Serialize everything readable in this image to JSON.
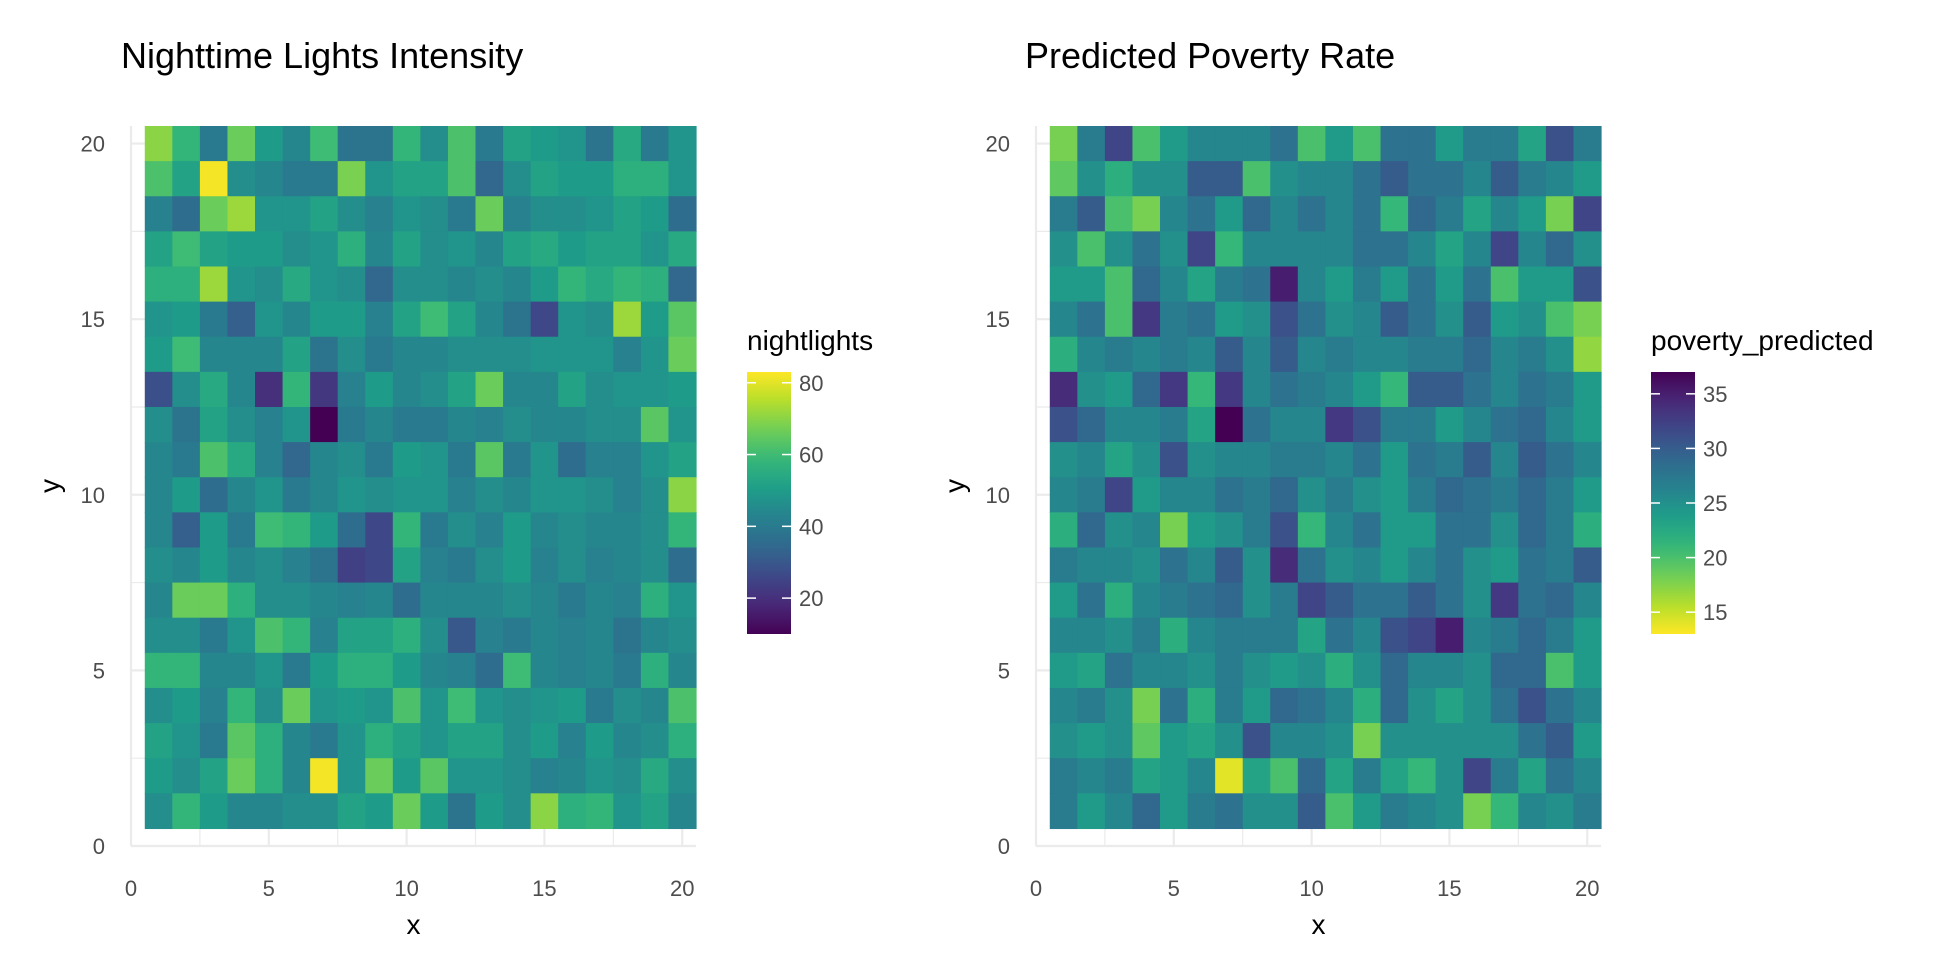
{
  "chart_data": [
    {
      "type": "heatmap",
      "title": "Nighttime Lights Intensity",
      "xlabel": "x",
      "ylabel": "y",
      "xlim": [
        0,
        20.5
      ],
      "ylim": [
        0,
        20.5
      ],
      "x_ticks": [
        0,
        5,
        10,
        15,
        20
      ],
      "y_ticks": [
        0,
        5,
        10,
        15,
        20
      ],
      "grid": true,
      "legend": {
        "title": "nightlights",
        "position": "right",
        "range": [
          10,
          83
        ],
        "ticks": [
          20,
          40,
          60,
          80
        ],
        "reverse": false,
        "scale": "viridis"
      },
      "rows_top_to_bottom": [
        [
          70,
          58,
          40,
          66,
          50,
          44,
          60,
          38,
          38,
          58,
          46,
          62,
          40,
          52,
          50,
          48,
          38,
          54,
          40,
          48
        ],
        [
          62,
          52,
          82,
          46,
          44,
          40,
          40,
          68,
          48,
          52,
          52,
          62,
          34,
          46,
          52,
          50,
          50,
          56,
          56,
          48
        ],
        [
          42,
          36,
          66,
          72,
          48,
          48,
          52,
          46,
          42,
          48,
          46,
          40,
          66,
          42,
          46,
          46,
          48,
          52,
          50,
          36
        ],
        [
          52,
          60,
          52,
          50,
          50,
          46,
          48,
          56,
          44,
          52,
          46,
          48,
          44,
          52,
          54,
          50,
          52,
          52,
          48,
          54
        ],
        [
          56,
          56,
          72,
          48,
          46,
          54,
          48,
          46,
          34,
          46,
          46,
          44,
          46,
          44,
          50,
          58,
          54,
          58,
          56,
          34
        ],
        [
          48,
          50,
          40,
          32,
          48,
          44,
          50,
          50,
          42,
          52,
          60,
          52,
          44,
          38,
          26,
          48,
          46,
          72,
          50,
          64
        ],
        [
          50,
          60,
          44,
          44,
          44,
          52,
          38,
          46,
          40,
          44,
          44,
          46,
          46,
          46,
          48,
          48,
          48,
          42,
          48,
          66
        ],
        [
          28,
          46,
          54,
          44,
          20,
          58,
          22,
          42,
          50,
          44,
          46,
          52,
          66,
          44,
          44,
          52,
          46,
          48,
          48,
          50
        ],
        [
          46,
          38,
          52,
          46,
          42,
          48,
          10,
          40,
          44,
          40,
          40,
          44,
          42,
          46,
          44,
          44,
          46,
          46,
          64,
          48
        ],
        [
          44,
          40,
          62,
          54,
          42,
          34,
          44,
          46,
          40,
          50,
          48,
          40,
          64,
          40,
          48,
          36,
          42,
          42,
          48,
          52
        ],
        [
          44,
          50,
          36,
          44,
          48,
          40,
          44,
          48,
          46,
          48,
          48,
          42,
          46,
          44,
          48,
          48,
          46,
          42,
          46,
          70
        ],
        [
          44,
          32,
          50,
          40,
          60,
          58,
          50,
          36,
          26,
          58,
          40,
          46,
          42,
          50,
          44,
          46,
          44,
          44,
          46,
          58
        ],
        [
          46,
          44,
          50,
          44,
          46,
          42,
          38,
          24,
          26,
          52,
          42,
          40,
          46,
          50,
          42,
          46,
          42,
          44,
          46,
          36
        ],
        [
          44,
          66,
          66,
          56,
          46,
          46,
          44,
          42,
          44,
          36,
          44,
          44,
          44,
          46,
          44,
          40,
          44,
          42,
          56,
          48
        ],
        [
          46,
          46,
          40,
          48,
          62,
          58,
          42,
          52,
          52,
          56,
          46,
          30,
          42,
          40,
          44,
          42,
          44,
          38,
          44,
          46
        ],
        [
          58,
          58,
          44,
          44,
          48,
          40,
          50,
          56,
          56,
          50,
          44,
          42,
          36,
          60,
          44,
          42,
          44,
          40,
          56,
          44
        ],
        [
          46,
          50,
          42,
          58,
          46,
          66,
          48,
          50,
          48,
          62,
          48,
          60,
          48,
          46,
          48,
          50,
          40,
          46,
          44,
          62
        ],
        [
          52,
          48,
          40,
          64,
          56,
          44,
          40,
          48,
          56,
          52,
          48,
          52,
          52,
          46,
          50,
          42,
          50,
          44,
          46,
          56
        ],
        [
          50,
          46,
          52,
          66,
          56,
          44,
          82,
          48,
          66,
          50,
          64,
          48,
          48,
          46,
          42,
          44,
          48,
          46,
          54,
          46
        ],
        [
          46,
          58,
          50,
          44,
          44,
          46,
          46,
          52,
          50,
          66,
          50,
          38,
          50,
          46,
          70,
          56,
          58,
          48,
          52,
          44
        ]
      ]
    },
    {
      "type": "heatmap",
      "title": "Predicted Poverty Rate",
      "xlabel": "x",
      "ylabel": "y",
      "xlim": [
        0,
        20.5
      ],
      "ylim": [
        0,
        20.5
      ],
      "x_ticks": [
        0,
        5,
        10,
        15,
        20
      ],
      "y_ticks": [
        0,
        5,
        10,
        15,
        20
      ],
      "grid": true,
      "legend": {
        "title": "poverty_predicted",
        "position": "right",
        "range": [
          13,
          37
        ],
        "ticks": [
          15,
          20,
          25,
          30,
          35
        ],
        "reverse": true,
        "scale": "viridis"
      },
      "rows_top_to_bottom": [
        [
          18,
          27,
          32,
          20,
          24,
          26,
          26,
          26,
          28,
          20,
          24,
          20,
          28,
          28,
          24,
          27,
          27,
          23,
          31,
          27
        ],
        [
          19,
          25,
          22,
          25,
          25,
          30,
          30,
          20,
          25,
          26,
          26,
          28,
          30,
          28,
          28,
          26,
          30,
          27,
          26,
          24
        ],
        [
          27,
          30,
          20,
          18,
          26,
          28,
          24,
          29,
          26,
          28,
          26,
          28,
          21,
          29,
          27,
          23,
          26,
          24,
          18,
          32
        ],
        [
          25,
          20,
          25,
          28,
          25,
          32,
          21,
          26,
          26,
          26,
          26,
          28,
          28,
          26,
          23,
          26,
          32,
          26,
          29,
          25
        ],
        [
          24,
          24,
          20,
          29,
          26,
          23,
          27,
          28,
          35,
          26,
          24,
          27,
          24,
          28,
          24,
          28,
          20,
          24,
          24,
          31
        ],
        [
          26,
          28,
          20,
          33,
          27,
          28,
          24,
          25,
          31,
          28,
          25,
          26,
          30,
          28,
          25,
          30,
          24,
          25,
          20,
          18
        ],
        [
          22,
          26,
          27,
          26,
          27,
          26,
          30,
          26,
          30,
          26,
          27,
          26,
          26,
          27,
          27,
          29,
          26,
          27,
          25,
          17
        ],
        [
          34,
          25,
          24,
          29,
          33,
          21,
          33,
          26,
          28,
          27,
          26,
          24,
          21,
          30,
          30,
          28,
          26,
          28,
          27,
          24
        ],
        [
          31,
          29,
          26,
          26,
          27,
          23,
          37,
          28,
          26,
          26,
          33,
          31,
          27,
          27,
          24,
          26,
          28,
          29,
          26,
          24
        ],
        [
          25,
          26,
          23,
          25,
          31,
          25,
          26,
          26,
          27,
          27,
          26,
          28,
          24,
          28,
          27,
          30,
          26,
          30,
          28,
          26
        ],
        [
          26,
          27,
          32,
          24,
          26,
          26,
          28,
          27,
          29,
          25,
          27,
          25,
          24,
          27,
          29,
          28,
          27,
          29,
          27,
          24
        ],
        [
          22,
          29,
          25,
          26,
          18,
          24,
          25,
          27,
          31,
          21,
          26,
          28,
          24,
          24,
          28,
          28,
          25,
          29,
          27,
          22
        ],
        [
          27,
          26,
          26,
          25,
          28,
          26,
          30,
          25,
          34,
          28,
          25,
          26,
          24,
          26,
          28,
          25,
          24,
          28,
          27,
          30
        ],
        [
          24,
          28,
          22,
          26,
          27,
          28,
          29,
          25,
          27,
          32,
          30,
          28,
          28,
          30,
          28,
          25,
          33,
          28,
          29,
          26
        ],
        [
          26,
          26,
          25,
          27,
          22,
          26,
          27,
          27,
          27,
          23,
          28,
          26,
          31,
          32,
          35,
          26,
          27,
          29,
          27,
          24
        ],
        [
          24,
          23,
          28,
          26,
          26,
          25,
          27,
          25,
          24,
          25,
          22,
          25,
          29,
          26,
          26,
          25,
          29,
          29,
          20,
          24
        ],
        [
          26,
          27,
          25,
          18,
          28,
          22,
          27,
          24,
          29,
          28,
          26,
          22,
          29,
          25,
          23,
          25,
          28,
          31,
          28,
          26
        ],
        [
          25,
          24,
          25,
          19,
          24,
          23,
          25,
          31,
          26,
          26,
          25,
          18,
          25,
          25,
          25,
          25,
          25,
          28,
          30,
          24
        ],
        [
          27,
          26,
          27,
          23,
          24,
          26,
          14,
          23,
          20,
          29,
          23,
          27,
          23,
          21,
          25,
          32,
          27,
          23,
          28,
          26
        ],
        [
          27,
          24,
          26,
          29,
          24,
          27,
          28,
          25,
          25,
          30,
          20,
          24,
          27,
          26,
          25,
          18,
          21,
          26,
          25,
          27
        ]
      ]
    }
  ]
}
